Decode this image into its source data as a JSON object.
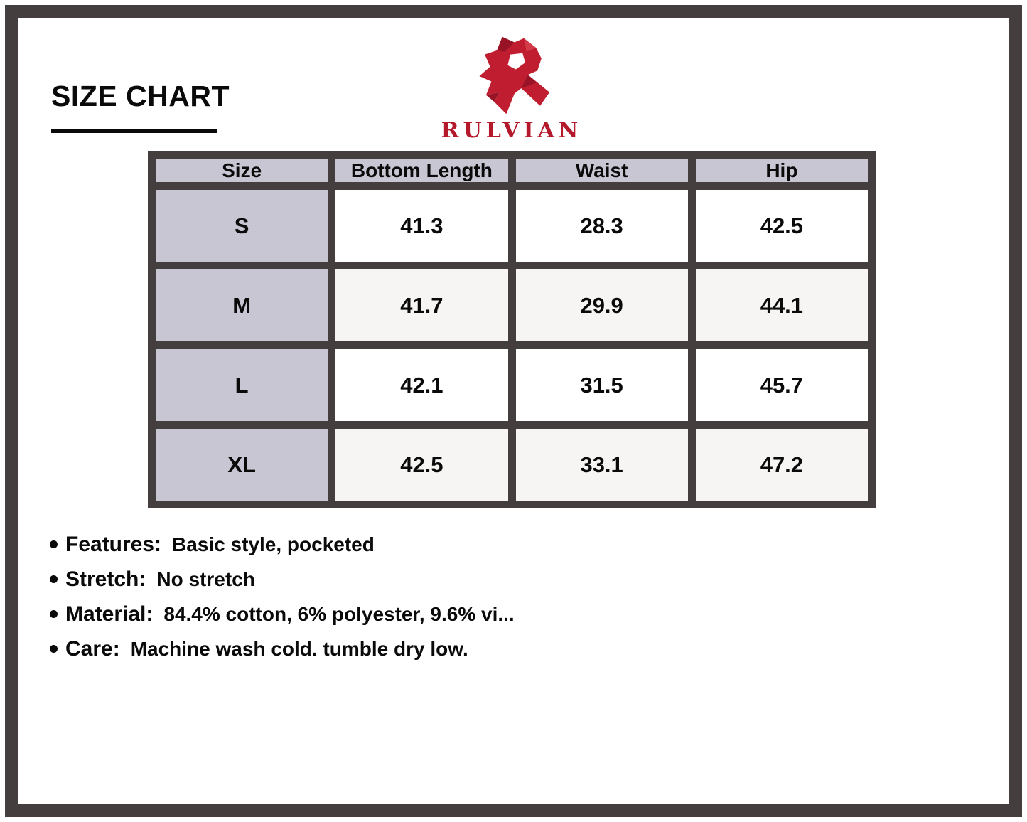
{
  "page": {
    "title": "SIZE CHART",
    "brand": {
      "name": "RULVIAN"
    },
    "colors": {
      "brand_red": "#b4182b",
      "logo_red": "#c01e30",
      "logo_red_dark": "#971325",
      "frame": "#453e3e",
      "header_cell_bg": "#c8c6d2",
      "alt_row_bg": "#f6f5f3"
    }
  },
  "chart_data": {
    "type": "table",
    "title": "SIZE CHART",
    "columns": [
      "Size",
      "Bottom Length",
      "Waist",
      "Hip"
    ],
    "rows": [
      {
        "size": "S",
        "values": [
          "41.3",
          "28.3",
          "42.5"
        ]
      },
      {
        "size": "M",
        "values": [
          "41.7",
          "29.9",
          "44.1"
        ]
      },
      {
        "size": "L",
        "values": [
          "42.1",
          "31.5",
          "45.7"
        ]
      },
      {
        "size": "XL",
        "values": [
          "42.5",
          "33.1",
          "47.2"
        ]
      }
    ]
  },
  "details": [
    {
      "label": "Features:",
      "value": "Basic style, pocketed"
    },
    {
      "label": "Stretch:",
      "value": "No stretch"
    },
    {
      "label": "Material:",
      "value": "84.4% cotton, 6% polyester, 9.6% vi..."
    },
    {
      "label": "Care:",
      "value": "Machine wash cold. tumble dry low."
    }
  ]
}
